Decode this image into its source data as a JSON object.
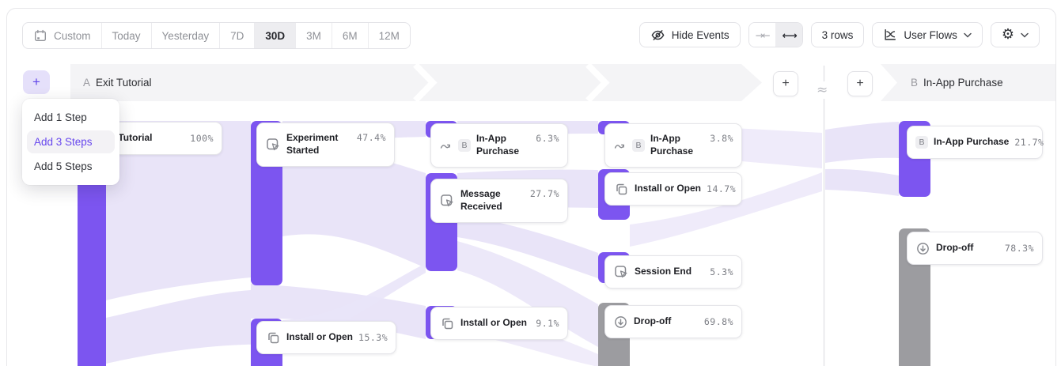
{
  "toolbar": {
    "date_ranges": [
      {
        "label": "Custom",
        "icon": "calendar",
        "selected": false
      },
      {
        "label": "Today",
        "selected": false
      },
      {
        "label": "Yesterday",
        "selected": false
      },
      {
        "label": "7D",
        "selected": false
      },
      {
        "label": "30D",
        "selected": true
      },
      {
        "label": "3M",
        "selected": false
      },
      {
        "label": "6M",
        "selected": false
      },
      {
        "label": "12M",
        "selected": false
      }
    ],
    "hide_events_label": "Hide Events",
    "collapse_icon": "→←",
    "expand_icon": "←→",
    "rows_label": "3 rows",
    "chart_type_label": "User Flows",
    "gear_glyph": "⚙"
  },
  "flow": {
    "sections": [
      {
        "letter": "A",
        "title": "Exit Tutorial"
      },
      {
        "letter": "B",
        "title": "In-App Purchase"
      }
    ],
    "approx_symbol": "≈",
    "add_step_label": "+",
    "add_menu": {
      "items": [
        {
          "label": "Add 1 Step",
          "active": false
        },
        {
          "label": "Add 3 Steps",
          "active": true
        },
        {
          "label": "Add 5 Steps",
          "active": false
        }
      ]
    },
    "nodes": [
      {
        "id": "exit-tutorial",
        "label": "Exit Tutorial",
        "value": "100%",
        "icon": null,
        "badge": null
      },
      {
        "id": "experiment-started",
        "label": "Experiment Started",
        "value": "47.4%",
        "icon": "cursor",
        "badge": null
      },
      {
        "id": "install-open-15",
        "label": "Install or Open",
        "value": "15.3%",
        "icon": "copy",
        "badge": null
      },
      {
        "id": "inapp-63",
        "label": "In-App Purchase",
        "value": "6.3%",
        "icon": "jump",
        "badge": "B"
      },
      {
        "id": "message-received",
        "label": "Message Received",
        "value": "27.7%",
        "icon": "cursor",
        "badge": null
      },
      {
        "id": "install-open-91",
        "label": "Install or Open",
        "value": "9.1%",
        "icon": "copy",
        "badge": null
      },
      {
        "id": "inapp-38",
        "label": "In-App Purchase",
        "value": "3.8%",
        "icon": "jump",
        "badge": "B"
      },
      {
        "id": "install-open-147",
        "label": "Install or Open",
        "value": "14.7%",
        "icon": "copy",
        "badge": null
      },
      {
        "id": "session-end",
        "label": "Session End",
        "value": "5.3%",
        "icon": "cursor",
        "badge": null
      },
      {
        "id": "dropoff-698",
        "label": "Drop-off",
        "value": "69.8%",
        "icon": "dropoff",
        "badge": null
      },
      {
        "id": "inapp-217",
        "label": "In-App Purchase",
        "value": "21.7%",
        "icon": null,
        "badge": "B"
      },
      {
        "id": "dropoff-783",
        "label": "Drop-off",
        "value": "78.3%",
        "icon": "dropoff",
        "badge": null
      }
    ]
  },
  "colors": {
    "accent_purple": "#7c55f0",
    "dropoff_gray": "#9c9ca0",
    "ribbon_lavender": "#e9e4f8",
    "band_gray": "#f4f4f6",
    "active_menu_purple": "#6747ee"
  }
}
